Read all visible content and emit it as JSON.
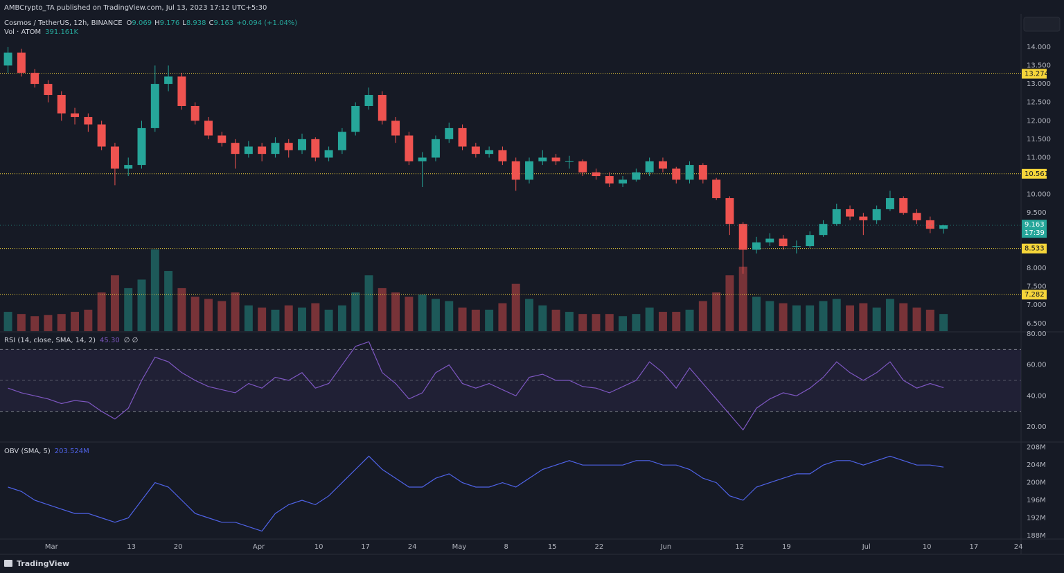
{
  "header": {
    "publisher": "AMBCrypto_TA published on TradingView.com, Jul 13, 2023 17:12 UTC+5:30"
  },
  "footer": {
    "brand": "TradingView"
  },
  "chart_data": [
    {
      "type": "candlestick",
      "title": "Cosmos / TetherUS, 12h, BINANCE",
      "ohlc_labels": [
        "O",
        "H",
        "L",
        "C"
      ],
      "change_label": "+0.094 (+1.04%)",
      "open": [
        13.5,
        13.85,
        13.3,
        13.0,
        12.7,
        12.2,
        12.1,
        11.9,
        11.3,
        10.7,
        10.8,
        11.8,
        13.0,
        13.2,
        12.4,
        12.0,
        11.6,
        11.4,
        11.1,
        11.3,
        11.1,
        11.4,
        11.2,
        11.5,
        11.0,
        11.2,
        11.7,
        12.4,
        12.7,
        12.0,
        11.6,
        10.9,
        11.0,
        11.5,
        11.8,
        11.3,
        11.1,
        11.2,
        10.9,
        10.4,
        10.9,
        11.0,
        10.9,
        10.9,
        10.6,
        10.5,
        10.3,
        10.4,
        10.6,
        10.9,
        10.7,
        10.4,
        10.8,
        10.4,
        9.9,
        9.2,
        8.5,
        8.7,
        8.8,
        8.6,
        8.6,
        8.9,
        9.2,
        9.6,
        9.4,
        9.3,
        9.6,
        9.9,
        9.5,
        9.3,
        9.069
      ],
      "high": [
        14.0,
        13.95,
        13.4,
        13.1,
        12.8,
        12.35,
        12.2,
        12.0,
        11.4,
        11.0,
        12.0,
        13.5,
        13.5,
        13.3,
        12.5,
        12.1,
        11.7,
        11.5,
        11.45,
        11.4,
        11.55,
        11.5,
        11.65,
        11.55,
        11.3,
        11.8,
        12.5,
        12.9,
        12.8,
        12.1,
        11.7,
        11.15,
        11.6,
        11.95,
        11.9,
        11.4,
        11.3,
        11.3,
        11.0,
        11.0,
        11.2,
        11.1,
        11.05,
        10.95,
        10.7,
        10.6,
        10.5,
        10.7,
        11.0,
        11.0,
        10.75,
        10.9,
        10.85,
        10.45,
        9.95,
        9.25,
        8.85,
        8.95,
        8.9,
        8.75,
        9.0,
        9.3,
        9.75,
        9.7,
        9.5,
        9.7,
        10.1,
        9.95,
        9.6,
        9.4,
        9.176
      ],
      "low": [
        13.3,
        13.2,
        12.9,
        12.5,
        12.0,
        11.9,
        11.7,
        11.2,
        10.25,
        10.5,
        10.7,
        11.7,
        12.8,
        12.3,
        11.9,
        11.5,
        11.3,
        10.7,
        11.0,
        10.9,
        11.0,
        11.0,
        11.1,
        10.9,
        10.9,
        11.1,
        11.6,
        12.3,
        11.9,
        11.4,
        10.8,
        10.2,
        10.9,
        11.4,
        11.2,
        11.0,
        11.0,
        10.8,
        10.1,
        10.3,
        10.8,
        10.8,
        10.7,
        10.5,
        10.4,
        10.2,
        10.2,
        10.35,
        10.5,
        10.6,
        10.3,
        10.3,
        10.3,
        9.85,
        8.9,
        7.85,
        8.4,
        8.6,
        8.5,
        8.4,
        8.55,
        8.85,
        9.15,
        9.3,
        8.9,
        9.2,
        9.55,
        9.45,
        9.2,
        8.95,
        8.938
      ],
      "close": [
        13.85,
        13.3,
        13.0,
        12.7,
        12.2,
        12.1,
        11.9,
        11.3,
        10.7,
        10.8,
        11.8,
        13.0,
        13.2,
        12.4,
        12.0,
        11.6,
        11.4,
        11.1,
        11.3,
        11.1,
        11.4,
        11.2,
        11.5,
        11.0,
        11.2,
        11.7,
        12.4,
        12.7,
        12.0,
        11.6,
        10.9,
        11.0,
        11.5,
        11.8,
        11.3,
        11.1,
        11.2,
        10.9,
        10.4,
        10.9,
        11.0,
        10.9,
        10.9,
        10.6,
        10.5,
        10.3,
        10.4,
        10.6,
        10.9,
        10.7,
        10.4,
        10.8,
        10.4,
        9.9,
        9.2,
        8.5,
        8.7,
        8.8,
        8.6,
        8.6,
        8.9,
        9.2,
        9.6,
        9.4,
        9.3,
        9.6,
        9.9,
        9.5,
        9.3,
        9.069,
        9.163
      ],
      "up_color": "#26a69a",
      "down_color": "#ef5350",
      "volume": {
        "name": "Vol · ATOM",
        "value_label": "391.161K",
        "values": [
          900,
          800,
          700,
          750,
          800,
          900,
          1000,
          1800,
          2600,
          2000,
          2400,
          3800,
          2800,
          2000,
          1600,
          1500,
          1400,
          1800,
          1200,
          1100,
          1000,
          1200,
          1100,
          1300,
          1000,
          1200,
          1800,
          2600,
          2000,
          1800,
          1600,
          1700,
          1500,
          1400,
          1100,
          1000,
          1000,
          1300,
          2200,
          1500,
          1200,
          1000,
          900,
          800,
          800,
          800,
          700,
          800,
          1100,
          900,
          900,
          1000,
          1400,
          1800,
          2600,
          3000,
          1600,
          1400,
          1300,
          1200,
          1200,
          1400,
          1500,
          1200,
          1300,
          1100,
          1500,
          1300,
          1100,
          1000,
          800
        ]
      },
      "levels": [
        13.274,
        10.561,
        8.533,
        7.282
      ],
      "level_color": "#f5d53a",
      "timer": "17:39",
      "xlim": [
        -0.6,
        75.8
      ],
      "ylim": [
        6.29,
        14.9
      ],
      "yticks": [
        {
          "value": 14,
          "label": "14.000"
        },
        {
          "value": 13.5,
          "label": "13.500"
        },
        {
          "value": 13,
          "label": "13.000"
        },
        {
          "value": 12.5,
          "label": "12.500"
        },
        {
          "value": 12,
          "label": "12.000"
        },
        {
          "value": 11.5,
          "label": "11.500"
        },
        {
          "value": 11,
          "label": "11.000"
        },
        {
          "value": 10,
          "label": "10.000"
        },
        {
          "value": 9.5,
          "label": "9.500"
        },
        {
          "value": 8,
          "label": "8.000"
        },
        {
          "value": 7.5,
          "label": "7.500"
        },
        {
          "value": 7,
          "label": "7.000"
        },
        {
          "value": 6.5,
          "label": "6.500"
        }
      ]
    },
    {
      "type": "line",
      "title": "RSI (14, close, SMA, 14, 2)",
      "value_label": "45.30",
      "extra": "∅ ∅",
      "values": [
        45,
        42,
        40,
        38,
        35,
        37,
        36,
        30,
        25,
        32,
        50,
        65,
        62,
        55,
        50,
        46,
        44,
        42,
        48,
        45,
        52,
        50,
        55,
        45,
        48,
        60,
        72,
        75,
        55,
        48,
        38,
        42,
        55,
        60,
        48,
        45,
        48,
        44,
        40,
        52,
        54,
        50,
        50,
        46,
        45,
        42,
        46,
        50,
        62,
        55,
        45,
        58,
        48,
        38,
        28,
        18,
        32,
        38,
        42,
        40,
        45,
        52,
        62,
        55,
        50,
        55,
        62,
        50,
        45,
        48,
        45.3
      ],
      "color": "#7e57c2",
      "band": [
        30,
        70
      ],
      "midline": 50,
      "xlim": [
        -0.6,
        75.8
      ],
      "ylim": [
        10.6,
        80.9
      ],
      "yticks": [
        {
          "value": 80,
          "label": "80.00"
        },
        {
          "value": 60,
          "label": "60.00"
        },
        {
          "value": 40,
          "label": "40.00"
        },
        {
          "value": 20,
          "label": "20.00"
        }
      ]
    },
    {
      "type": "line",
      "title": "OBV (SMA, 5)",
      "value_label": "203.524M",
      "values": [
        199,
        198,
        196,
        195,
        194,
        193,
        193,
        192,
        191,
        192,
        196,
        200,
        199,
        196,
        193,
        192,
        191,
        191,
        190,
        189,
        193,
        195,
        196,
        195,
        197,
        200,
        203,
        206,
        203,
        201,
        199,
        199,
        201,
        202,
        200,
        199,
        199,
        200,
        199,
        201,
        203,
        204,
        205,
        204,
        204,
        204,
        204,
        205,
        205,
        204,
        204,
        203,
        201,
        200,
        197,
        196,
        199,
        200,
        201,
        202,
        202,
        204,
        205,
        205,
        204,
        205,
        206,
        205,
        204,
        204,
        203.524
      ],
      "color": "#4f63e8",
      "xlim": [
        -0.6,
        75.8
      ],
      "ylim": [
        187.2,
        208.9
      ],
      "yticks": [
        {
          "value": 208,
          "label": "208M"
        },
        {
          "value": 204,
          "label": "204M"
        },
        {
          "value": 200,
          "label": "200M"
        },
        {
          "value": 196,
          "label": "196M"
        },
        {
          "value": 192,
          "label": "192M"
        },
        {
          "value": 188,
          "label": "188M"
        }
      ],
      "xticks": [
        {
          "value": 3.25,
          "label": "Mar"
        },
        {
          "value": 9.23,
          "label": "13"
        },
        {
          "value": 12.73,
          "label": "20"
        },
        {
          "value": 18.76,
          "label": "Apr"
        },
        {
          "value": 23.25,
          "label": "10"
        },
        {
          "value": 26.75,
          "label": "17"
        },
        {
          "value": 30.25,
          "label": "24"
        },
        {
          "value": 33.76,
          "label": "May"
        },
        {
          "value": 37.27,
          "label": "8"
        },
        {
          "value": 40.72,
          "label": "15"
        },
        {
          "value": 44.23,
          "label": "22"
        },
        {
          "value": 49.23,
          "label": "Jun"
        },
        {
          "value": 54.74,
          "label": "12"
        },
        {
          "value": 58.25,
          "label": "19"
        },
        {
          "value": 64.23,
          "label": "Jul"
        },
        {
          "value": 68.76,
          "label": "10"
        },
        {
          "value": 72.27,
          "label": "17"
        },
        {
          "value": 75.6,
          "label": "24"
        }
      ]
    }
  ]
}
